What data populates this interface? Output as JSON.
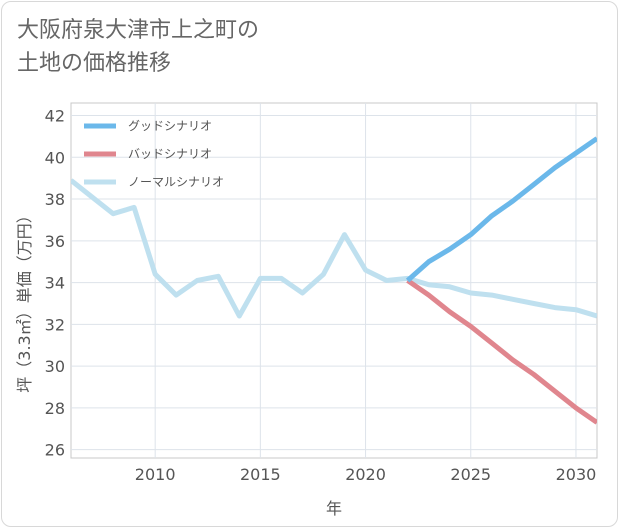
{
  "title": "大阪府泉大津市上之町の\n土地の価格推移",
  "chart_data": {
    "type": "line",
    "title": "大阪府泉大津市上之町の土地の価格推移",
    "xlabel": "年",
    "ylabel": "坪（3.3㎡）単価（万円）",
    "xlim": [
      2006,
      2031
    ],
    "ylim": [
      25.6,
      42.6
    ],
    "xticks": [
      2010,
      2015,
      2020,
      2025,
      2030
    ],
    "yticks": [
      26,
      28,
      30,
      32,
      34,
      36,
      38,
      40,
      42
    ],
    "grid": true,
    "legend_position": "top-left",
    "series": [
      {
        "name": "グッドシナリオ",
        "color": "#6bb8ea",
        "x": [
          2022,
          2023,
          2024,
          2025,
          2026,
          2027,
          2028,
          2029,
          2030,
          2031
        ],
        "y": [
          34.1,
          35.0,
          35.6,
          36.3,
          37.2,
          37.9,
          38.7,
          39.5,
          40.2,
          40.9
        ]
      },
      {
        "name": "バッドシナリオ",
        "color": "#e0868e",
        "x": [
          2022,
          2023,
          2024,
          2025,
          2026,
          2027,
          2028,
          2029,
          2030,
          2031
        ],
        "y": [
          34.1,
          33.4,
          32.6,
          31.9,
          31.1,
          30.3,
          29.6,
          28.8,
          28.0,
          27.3
        ]
      },
      {
        "name": "ノーマルシナリオ",
        "color": "#bfe0ef",
        "x": [
          2006,
          2007,
          2008,
          2009,
          2010,
          2011,
          2012,
          2013,
          2014,
          2015,
          2016,
          2017,
          2018,
          2019,
          2020,
          2021,
          2022,
          2023,
          2024,
          2025,
          2026,
          2027,
          2028,
          2029,
          2030,
          2031
        ],
        "y": [
          38.9,
          38.1,
          37.3,
          37.6,
          34.4,
          33.4,
          34.1,
          34.3,
          32.4,
          34.2,
          34.2,
          33.5,
          34.4,
          36.3,
          34.6,
          34.1,
          34.2,
          33.9,
          33.8,
          33.5,
          33.4,
          33.2,
          33.0,
          32.8,
          32.7,
          32.4
        ]
      }
    ]
  }
}
